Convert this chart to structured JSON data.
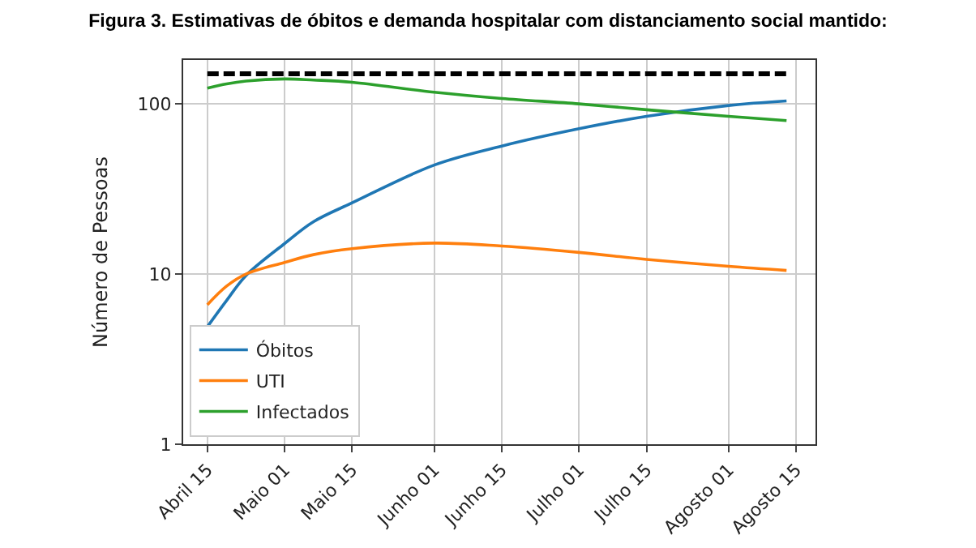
{
  "chart_data": {
    "type": "line",
    "title": "Figura 3. Estimativas de óbitos e demanda hospitalar com distanciamento social mantido:",
    "ylabel": "Número de Pessoas",
    "x": [
      "--04-15",
      "--04-19",
      "--04-23",
      "--05-01",
      "--05-07",
      "--05-15",
      "--06-01",
      "--06-15",
      "--07-01",
      "--07-15",
      "--08-01",
      "--08-13"
    ],
    "series": [
      {
        "name": "Óbitos",
        "color": "#1f77b4",
        "values": [
          4.9,
          7,
          9.8,
          15.1,
          20.3,
          26.2,
          43.7,
          56.5,
          71.4,
          84.5,
          97.8,
          104
        ]
      },
      {
        "name": "UTI",
        "color": "#ff7f0e",
        "values": [
          6.6,
          8.5,
          10,
          11.7,
          13,
          14.1,
          15.2,
          14.6,
          13.4,
          12.2,
          11.1,
          10.5
        ]
      },
      {
        "name": "Infectados",
        "color": "#2ca02c",
        "values": [
          123.7,
          131,
          136,
          140,
          138,
          134,
          117,
          107.6,
          100,
          92.3,
          84.5,
          79.8
        ]
      },
      {
        "color": "#000000",
        "line_style": "dashed",
        "x": [
          "--04-15",
          "--08-13"
        ],
        "values": [
          150,
          150
        ]
      }
    ],
    "log": "y",
    "ylim": [
      1,
      181
    ],
    "yticks": [
      1,
      10,
      100
    ],
    "xlim": [
      "--04-10",
      "--08-19"
    ],
    "xticks": [
      {
        "value": "--04-15",
        "label": "Abril 15"
      },
      {
        "value": "--05-01",
        "label": "Maio 01"
      },
      {
        "value": "--05-15",
        "label": "Maio 15"
      },
      {
        "value": "--06-01",
        "label": "Junho 01"
      },
      {
        "value": "--06-15",
        "label": "Junho 15"
      },
      {
        "value": "--07-01",
        "label": "Julho 01"
      },
      {
        "value": "--07-15",
        "label": "Julho 15"
      },
      {
        "value": "--08-01",
        "label": "Agosto 01"
      },
      {
        "value": "--08-15",
        "label": "Agosto 15"
      }
    ],
    "grid": true,
    "legend": "bottom left",
    "line_style": "solid",
    "marker": "none"
  }
}
